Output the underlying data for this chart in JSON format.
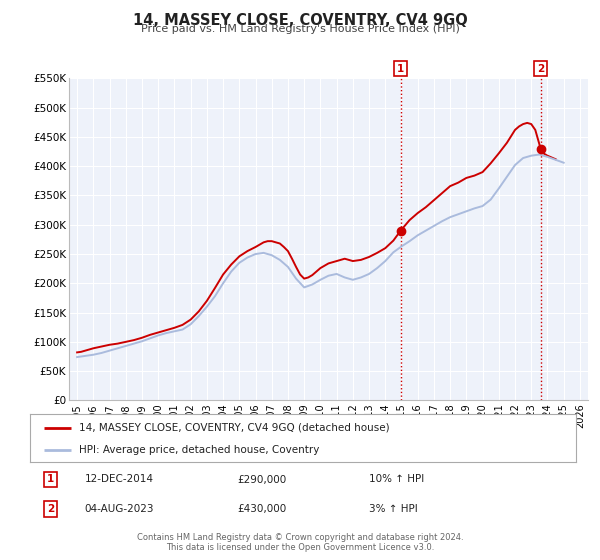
{
  "title": "14, MASSEY CLOSE, COVENTRY, CV4 9GQ",
  "subtitle": "Price paid vs. HM Land Registry's House Price Index (HPI)",
  "ylim": [
    0,
    550000
  ],
  "yticks": [
    0,
    50000,
    100000,
    150000,
    200000,
    250000,
    300000,
    350000,
    400000,
    450000,
    500000,
    550000
  ],
  "ytick_labels": [
    "£0",
    "£50K",
    "£100K",
    "£150K",
    "£200K",
    "£250K",
    "£300K",
    "£350K",
    "£400K",
    "£450K",
    "£500K",
    "£550K"
  ],
  "xlim": [
    1994.5,
    2026.5
  ],
  "xticks": [
    1995,
    1996,
    1997,
    1998,
    1999,
    2000,
    2001,
    2002,
    2003,
    2004,
    2005,
    2006,
    2007,
    2008,
    2009,
    2010,
    2011,
    2012,
    2013,
    2014,
    2015,
    2016,
    2017,
    2018,
    2019,
    2020,
    2021,
    2022,
    2023,
    2024,
    2025,
    2026
  ],
  "xtick_labels": [
    "1995",
    "1996",
    "1997",
    "1998",
    "1999",
    "2000",
    "2001",
    "2002",
    "2003",
    "2004",
    "2005",
    "2006",
    "2007",
    "2008",
    "2009",
    "2010",
    "2011",
    "2012",
    "2013",
    "2014",
    "2015",
    "2016",
    "2017",
    "2018",
    "2019",
    "2020",
    "2021",
    "2022",
    "2023",
    "2024",
    "2025",
    "2026"
  ],
  "background_color": "#ffffff",
  "plot_bg_color": "#eef2fa",
  "grid_color": "#ffffff",
  "red_line_color": "#cc0000",
  "blue_line_color": "#aabbdd",
  "marker1_x": 2014.95,
  "marker1_y": 290000,
  "marker2_x": 2023.58,
  "marker2_y": 430000,
  "vline1_x": 2014.95,
  "vline2_x": 2023.58,
  "vline_color": "#cc0000",
  "legend_label1": "14, MASSEY CLOSE, COVENTRY, CV4 9GQ (detached house)",
  "legend_label2": "HPI: Average price, detached house, Coventry",
  "annotation1_text": "12-DEC-2014",
  "annotation1_price": "£290,000",
  "annotation1_hpi": "10% ↑ HPI",
  "annotation2_text": "04-AUG-2023",
  "annotation2_price": "£430,000",
  "annotation2_hpi": "3% ↑ HPI",
  "footer1": "Contains HM Land Registry data © Crown copyright and database right 2024.",
  "footer2": "This data is licensed under the Open Government Licence v3.0.",
  "red_data_years": [
    1995.0,
    1995.25,
    1995.5,
    1995.75,
    1996.0,
    1996.5,
    1997.0,
    1997.5,
    1998.0,
    1998.5,
    1999.0,
    1999.5,
    2000.0,
    2000.5,
    2001.0,
    2001.5,
    2002.0,
    2002.5,
    2003.0,
    2003.5,
    2004.0,
    2004.5,
    2005.0,
    2005.5,
    2006.0,
    2006.25,
    2006.5,
    2006.75,
    2007.0,
    2007.25,
    2007.5,
    2007.75,
    2008.0,
    2008.25,
    2008.5,
    2008.75,
    2009.0,
    2009.25,
    2009.5,
    2009.75,
    2010.0,
    2010.5,
    2011.0,
    2011.5,
    2012.0,
    2012.5,
    2013.0,
    2013.5,
    2014.0,
    2014.5,
    2014.95,
    2015.5,
    2016.0,
    2016.5,
    2017.0,
    2017.5,
    2018.0,
    2018.5,
    2019.0,
    2019.5,
    2020.0,
    2020.5,
    2021.0,
    2021.5,
    2022.0,
    2022.25,
    2022.5,
    2022.75,
    2023.0,
    2023.25,
    2023.58,
    2023.75,
    2024.0,
    2024.25,
    2024.5
  ],
  "red_data_values": [
    82000,
    83000,
    85000,
    87000,
    89000,
    92000,
    95000,
    97000,
    100000,
    103000,
    107000,
    112000,
    116000,
    120000,
    124000,
    129000,
    138000,
    152000,
    170000,
    192000,
    215000,
    232000,
    246000,
    255000,
    262000,
    266000,
    270000,
    272000,
    272000,
    270000,
    268000,
    262000,
    255000,
    242000,
    228000,
    215000,
    208000,
    210000,
    214000,
    220000,
    226000,
    234000,
    238000,
    242000,
    238000,
    240000,
    245000,
    252000,
    260000,
    273000,
    290000,
    308000,
    320000,
    330000,
    342000,
    354000,
    366000,
    372000,
    380000,
    384000,
    390000,
    405000,
    422000,
    440000,
    462000,
    468000,
    472000,
    474000,
    472000,
    462000,
    430000,
    422000,
    418000,
    415000,
    412000
  ],
  "blue_data_years": [
    1995.0,
    1995.5,
    1996.0,
    1996.5,
    1997.0,
    1997.5,
    1998.0,
    1998.5,
    1999.0,
    1999.5,
    2000.0,
    2000.5,
    2001.0,
    2001.5,
    2002.0,
    2002.5,
    2003.0,
    2003.5,
    2004.0,
    2004.5,
    2005.0,
    2005.5,
    2006.0,
    2006.5,
    2007.0,
    2007.5,
    2008.0,
    2008.5,
    2009.0,
    2009.5,
    2010.0,
    2010.5,
    2011.0,
    2011.5,
    2012.0,
    2012.5,
    2013.0,
    2013.5,
    2014.0,
    2014.5,
    2015.0,
    2015.5,
    2016.0,
    2016.5,
    2017.0,
    2017.5,
    2018.0,
    2018.5,
    2019.0,
    2019.5,
    2020.0,
    2020.5,
    2021.0,
    2021.5,
    2022.0,
    2022.5,
    2023.0,
    2023.5,
    2024.0,
    2024.5,
    2025.0
  ],
  "blue_data_values": [
    74000,
    76000,
    78000,
    81000,
    85000,
    89000,
    93000,
    97000,
    101000,
    106000,
    111000,
    115000,
    118000,
    121000,
    130000,
    144000,
    160000,
    178000,
    200000,
    220000,
    235000,
    244000,
    250000,
    252000,
    248000,
    240000,
    228000,
    208000,
    193000,
    198000,
    206000,
    213000,
    216000,
    210000,
    206000,
    210000,
    216000,
    226000,
    238000,
    253000,
    263000,
    272000,
    282000,
    290000,
    298000,
    306000,
    313000,
    318000,
    323000,
    328000,
    332000,
    343000,
    362000,
    382000,
    402000,
    414000,
    418000,
    420000,
    416000,
    411000,
    406000
  ]
}
